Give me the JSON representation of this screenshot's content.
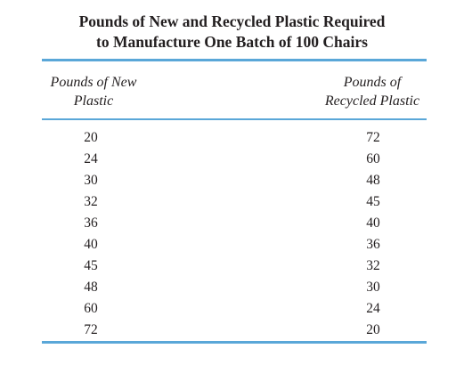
{
  "title": {
    "line1": "Pounds of New and Recycled Plastic Required",
    "line2": "to Manufacture One Batch of 100 Chairs"
  },
  "columns": {
    "new": [
      "Pounds of New",
      "Plastic"
    ],
    "recycled": [
      "Pounds of",
      "Recycled Plastic"
    ]
  },
  "rows": [
    {
      "new": "20",
      "recycled": "72"
    },
    {
      "new": "24",
      "recycled": "60"
    },
    {
      "new": "30",
      "recycled": "48"
    },
    {
      "new": "32",
      "recycled": "45"
    },
    {
      "new": "36",
      "recycled": "40"
    },
    {
      "new": "40",
      "recycled": "36"
    },
    {
      "new": "45",
      "recycled": "32"
    },
    {
      "new": "48",
      "recycled": "30"
    },
    {
      "new": "60",
      "recycled": "24"
    },
    {
      "new": "72",
      "recycled": "20"
    }
  ],
  "colors": {
    "rule": "#5aa7d8",
    "text": "#231f20"
  }
}
